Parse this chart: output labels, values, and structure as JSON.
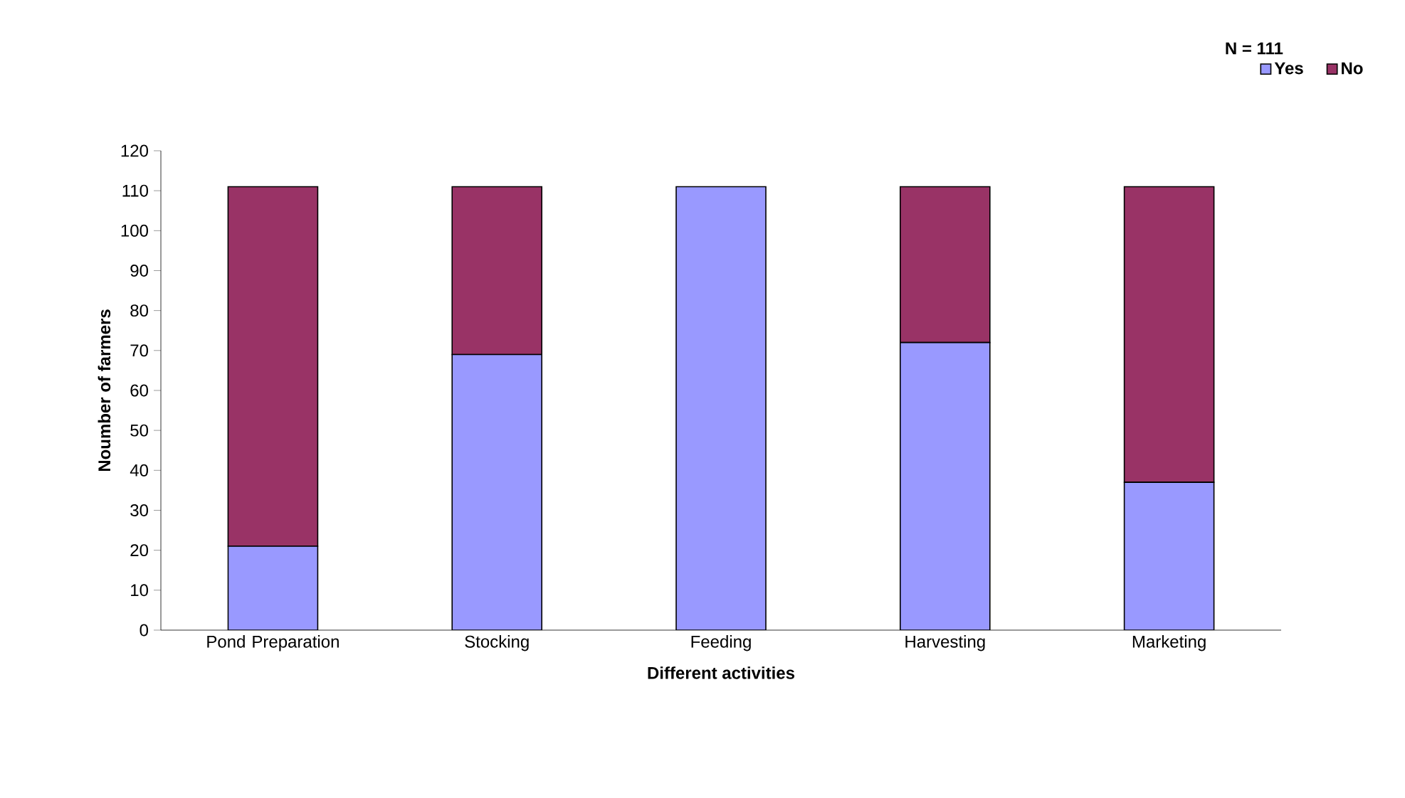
{
  "chart_data": {
    "type": "bar",
    "stacked": true,
    "xlabel": "Different activities",
    "ylabel": "Noumber of farmers",
    "categories": [
      "Pond Preparation",
      "Stocking",
      "Feeding",
      "Harvesting",
      "Marketing"
    ],
    "series": [
      {
        "name": "Yes",
        "color": "#9999ff",
        "values": [
          21,
          69,
          111,
          72,
          37
        ]
      },
      {
        "name": "No",
        "color": "#993366",
        "values": [
          90,
          42,
          0,
          39,
          74
        ]
      }
    ],
    "ylim": [
      0,
      120
    ],
    "yticks": [
      0,
      10,
      20,
      30,
      40,
      50,
      60,
      70,
      80,
      90,
      100,
      110,
      120
    ],
    "grid": false,
    "legend": "top right",
    "annotations": [
      "N = 111"
    ]
  }
}
